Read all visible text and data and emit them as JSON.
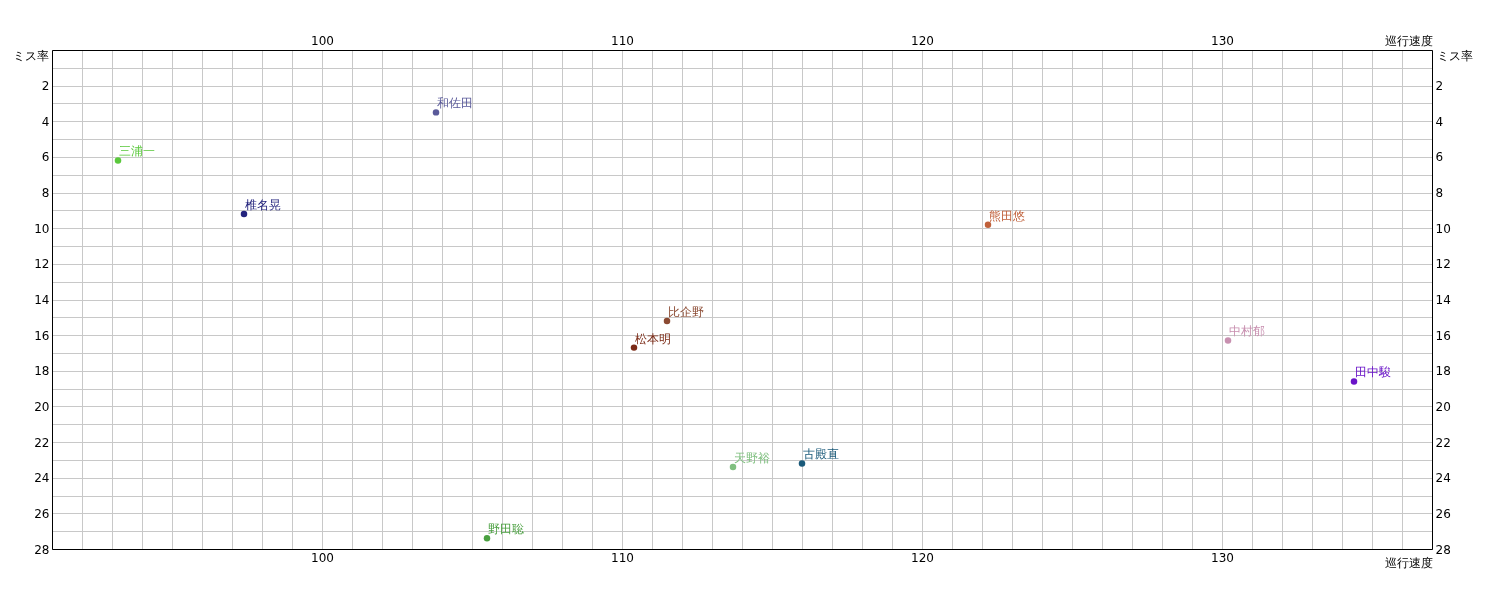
{
  "chart_data": {
    "type": "scatter",
    "xlabel": "巡行速度",
    "ylabel": "ミス率",
    "x2label": "巡行速度",
    "y2label": "ミス率",
    "xlim": [
      91,
      137
    ],
    "x2lim": [
      91,
      137
    ],
    "ylim": [
      28,
      0
    ],
    "y2lim": [
      28,
      0
    ],
    "xticks": [
      {
        "value": 91,
        "label": null
      },
      {
        "value": 92,
        "label": null
      },
      {
        "value": 93,
        "label": null
      },
      {
        "value": 94,
        "label": null
      },
      {
        "value": 95,
        "label": null
      },
      {
        "value": 96,
        "label": null
      },
      {
        "value": 97,
        "label": null
      },
      {
        "value": 98,
        "label": null
      },
      {
        "value": 99,
        "label": null
      },
      100,
      {
        "value": 101,
        "label": null
      },
      {
        "value": 102,
        "label": null
      },
      {
        "value": 103,
        "label": null
      },
      {
        "value": 104,
        "label": null
      },
      {
        "value": 105,
        "label": null
      },
      {
        "value": 106,
        "label": null
      },
      {
        "value": 107,
        "label": null
      },
      {
        "value": 108,
        "label": null
      },
      {
        "value": 109,
        "label": null
      },
      110,
      {
        "value": 111,
        "label": null
      },
      {
        "value": 112,
        "label": null
      },
      {
        "value": 113,
        "label": null
      },
      {
        "value": 114,
        "label": null
      },
      {
        "value": 115,
        "label": null
      },
      {
        "value": 116,
        "label": null
      },
      {
        "value": 117,
        "label": null
      },
      {
        "value": 118,
        "label": null
      },
      {
        "value": 119,
        "label": null
      },
      120,
      {
        "value": 121,
        "label": null
      },
      {
        "value": 122,
        "label": null
      },
      {
        "value": 123,
        "label": null
      },
      {
        "value": 124,
        "label": null
      },
      {
        "value": 125,
        "label": null
      },
      {
        "value": 126,
        "label": null
      },
      {
        "value": 127,
        "label": null
      },
      {
        "value": 128,
        "label": null
      },
      {
        "value": 129,
        "label": null
      },
      130,
      {
        "value": 131,
        "label": null
      },
      {
        "value": 132,
        "label": null
      },
      {
        "value": 133,
        "label": null
      },
      {
        "value": 134,
        "label": null
      },
      {
        "value": 135,
        "label": null
      },
      {
        "value": 136,
        "label": null
      },
      {
        "value": 137,
        "label": null
      }
    ],
    "x2ticks": [
      {
        "value": 91,
        "label": null
      },
      {
        "value": 92,
        "label": null
      },
      {
        "value": 93,
        "label": null
      },
      {
        "value": 94,
        "label": null
      },
      {
        "value": 95,
        "label": null
      },
      {
        "value": 96,
        "label": null
      },
      {
        "value": 97,
        "label": null
      },
      {
        "value": 98,
        "label": null
      },
      {
        "value": 99,
        "label": null
      },
      100,
      {
        "value": 101,
        "label": null
      },
      {
        "value": 102,
        "label": null
      },
      {
        "value": 103,
        "label": null
      },
      {
        "value": 104,
        "label": null
      },
      {
        "value": 105,
        "label": null
      },
      {
        "value": 106,
        "label": null
      },
      {
        "value": 107,
        "label": null
      },
      {
        "value": 108,
        "label": null
      },
      {
        "value": 109,
        "label": null
      },
      110,
      {
        "value": 111,
        "label": null
      },
      {
        "value": 112,
        "label": null
      },
      {
        "value": 113,
        "label": null
      },
      {
        "value": 114,
        "label": null
      },
      {
        "value": 115,
        "label": null
      },
      {
        "value": 116,
        "label": null
      },
      {
        "value": 117,
        "label": null
      },
      {
        "value": 118,
        "label": null
      },
      {
        "value": 119,
        "label": null
      },
      120,
      {
        "value": 121,
        "label": null
      },
      {
        "value": 122,
        "label": null
      },
      {
        "value": 123,
        "label": null
      },
      {
        "value": 124,
        "label": null
      },
      {
        "value": 125,
        "label": null
      },
      {
        "value": 126,
        "label": null
      },
      {
        "value": 127,
        "label": null
      },
      {
        "value": 128,
        "label": null
      },
      {
        "value": 129,
        "label": null
      },
      130,
      {
        "value": 131,
        "label": null
      },
      {
        "value": 132,
        "label": null
      },
      {
        "value": 133,
        "label": null
      },
      {
        "value": 134,
        "label": null
      },
      {
        "value": 135,
        "label": null
      },
      {
        "value": 136,
        "label": null
      },
      {
        "value": 137,
        "label": null
      }
    ],
    "yticks": [
      {
        "value": 0,
        "label": null
      },
      {
        "value": 1,
        "label": null
      },
      2,
      {
        "value": 3,
        "label": null
      },
      4,
      {
        "value": 5,
        "label": null
      },
      6,
      {
        "value": 7,
        "label": null
      },
      8,
      {
        "value": 9,
        "label": null
      },
      10,
      {
        "value": 11,
        "label": null
      },
      12,
      {
        "value": 13,
        "label": null
      },
      14,
      {
        "value": 15,
        "label": null
      },
      16,
      {
        "value": 17,
        "label": null
      },
      18,
      {
        "value": 19,
        "label": null
      },
      20,
      {
        "value": 21,
        "label": null
      },
      22,
      {
        "value": 23,
        "label": null
      },
      24,
      {
        "value": 25,
        "label": null
      },
      26,
      {
        "value": 27,
        "label": null
      },
      28
    ],
    "y2ticks": [
      {
        "value": 0,
        "label": null
      },
      {
        "value": 1,
        "label": null
      },
      2,
      {
        "value": 3,
        "label": null
      },
      4,
      {
        "value": 5,
        "label": null
      },
      6,
      {
        "value": 7,
        "label": null
      },
      8,
      {
        "value": 9,
        "label": null
      },
      10,
      {
        "value": 11,
        "label": null
      },
      12,
      {
        "value": 13,
        "label": null
      },
      14,
      {
        "value": 15,
        "label": null
      },
      16,
      {
        "value": 17,
        "label": null
      },
      18,
      {
        "value": 19,
        "label": null
      },
      20,
      {
        "value": 21,
        "label": null
      },
      22,
      {
        "value": 23,
        "label": null
      },
      24,
      {
        "value": 25,
        "label": null
      },
      26,
      {
        "value": 27,
        "label": null
      },
      28
    ],
    "grid": true,
    "marker": "circle",
    "legend": false,
    "series": [
      {
        "name": "和佐田",
        "color": "#5a5a9a",
        "x": [
          103.8
        ],
        "values": [
          3.5
        ]
      },
      {
        "name": "三浦一",
        "color": "#5ac83c",
        "x": [
          93.2
        ],
        "values": [
          6.2
        ]
      },
      {
        "name": "椎名晃",
        "color": "#23237d",
        "x": [
          97.4
        ],
        "values": [
          9.2
        ]
      },
      {
        "name": "熊田悠",
        "color": "#c0603a",
        "x": [
          122.2
        ],
        "values": [
          9.8
        ]
      },
      {
        "name": "比企野",
        "color": "#8b4a32",
        "x": [
          111.5
        ],
        "values": [
          15.2
        ]
      },
      {
        "name": "松本明",
        "color": "#7b2a16",
        "x": [
          110.4
        ],
        "values": [
          16.7
        ]
      },
      {
        "name": "中村郁",
        "color": "#c890b0",
        "x": [
          130.2
        ],
        "values": [
          16.3
        ]
      },
      {
        "name": "田中駿",
        "color": "#6a14c8",
        "x": [
          134.4
        ],
        "values": [
          18.6
        ]
      },
      {
        "name": "天野裕",
        "color": "#80c080",
        "x": [
          113.7
        ],
        "values": [
          23.4
        ]
      },
      {
        "name": "古殿直",
        "color": "#1a5a7a",
        "x": [
          116.0
        ],
        "values": [
          23.2
        ]
      },
      {
        "name": "野田聡",
        "color": "#4aa040",
        "x": [
          105.5
        ],
        "values": [
          27.4
        ]
      }
    ]
  }
}
